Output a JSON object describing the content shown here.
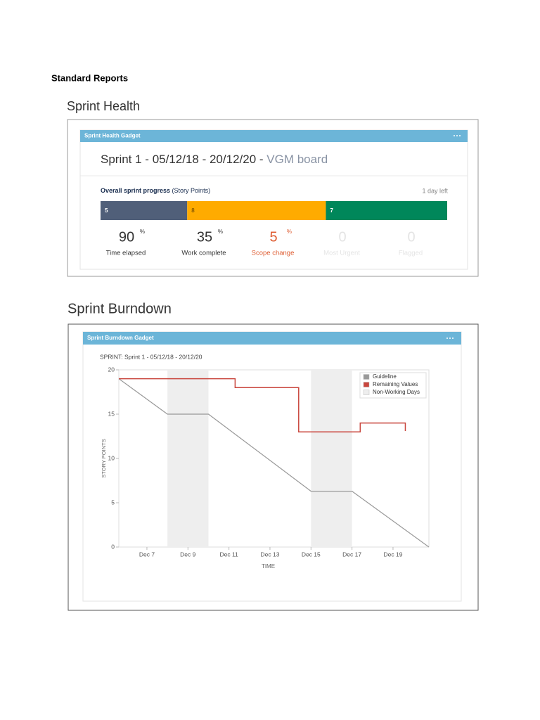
{
  "header": {
    "title": "Standard Reports"
  },
  "sprint_health": {
    "heading": "Sprint Health",
    "gadget_title": "Sprint Health Gadget",
    "sprint_name": "Sprint 1 - 05/12/18 - 20/12/20 - ",
    "board": "VGM board",
    "progress_label": "Overall sprint progress",
    "progress_unit": " (Story Points)",
    "time_left": "1 day left",
    "segments": [
      {
        "value": 5,
        "color": "#505f79",
        "label_color": "#ffffff"
      },
      {
        "value": 8,
        "color": "#ffab00",
        "label_color": "#8a5a00"
      },
      {
        "value": 7,
        "color": "#00875a",
        "label_color": "#ffffff"
      }
    ],
    "stats": [
      {
        "value": 90,
        "unit": "%",
        "label": "Time elapsed",
        "color": "#333333"
      },
      {
        "value": 35,
        "unit": "%",
        "label": "Work complete",
        "color": "#333333"
      },
      {
        "value": 5,
        "unit": "%",
        "label": "Scope change",
        "color": "#de5b30"
      },
      {
        "value": 0,
        "label": "Most Urgent",
        "color": "#e4e4e4"
      },
      {
        "value": 0,
        "label": "Flagged",
        "color": "#e4e4e4"
      }
    ]
  },
  "sprint_burndown": {
    "heading": "Sprint Burndown",
    "gadget_title": "Sprint Burndown Gadget"
  },
  "chart_data": {
    "type": "line",
    "title": "SPRINT: Sprint 1 - 05/12/18 - 20/12/20",
    "x_label": "TIME",
    "y_label": "STORY POINTS",
    "xlim": [
      5.63,
      20.75
    ],
    "xticks": [
      {
        "value": 7,
        "label": "Dec 7"
      },
      {
        "value": 9,
        "label": "Dec 9"
      },
      {
        "value": 11,
        "label": "Dec 11"
      },
      {
        "value": 13,
        "label": "Dec 13"
      },
      {
        "value": 15,
        "label": "Dec 15"
      },
      {
        "value": 17,
        "label": "Dec 17"
      },
      {
        "value": 19,
        "label": "Dec 19"
      }
    ],
    "ylim": [
      0,
      20
    ],
    "yticks": [
      0,
      5,
      10,
      15,
      20
    ],
    "legend": "upper-right",
    "series": [
      {
        "name": "Guideline",
        "color": "#999999",
        "x": [
          5.63,
          8,
          10,
          15,
          17,
          20.75
        ],
        "values": [
          19,
          15,
          15,
          6.3,
          6.3,
          0
        ]
      },
      {
        "name": "Remaining Values",
        "color": "#c9463d",
        "x": [
          5.63,
          11.3,
          11.3,
          14.4,
          14.4,
          17.4,
          17.4,
          19.6,
          19.6
        ],
        "values": [
          19,
          19,
          18,
          18,
          13,
          13,
          14,
          14,
          13.1
        ]
      },
      {
        "name": "Non-Working Days",
        "color": "#eeeeee",
        "ranges": [
          [
            8,
            10
          ],
          [
            15,
            17
          ]
        ]
      }
    ]
  }
}
